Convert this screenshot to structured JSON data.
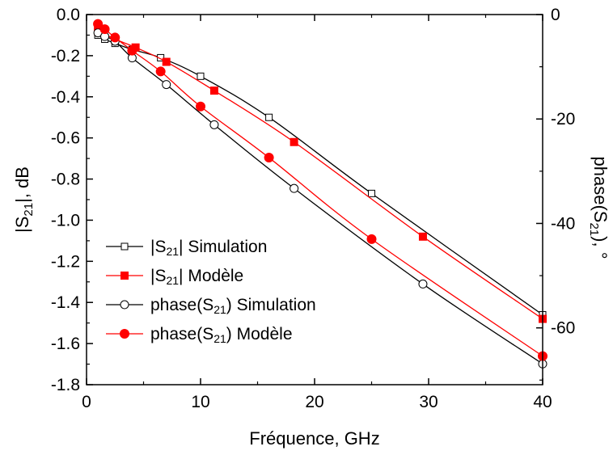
{
  "chart_data": {
    "type": "line",
    "xlabel": "Fréquence, GHz",
    "ylabel_left": {
      "base": "|S",
      "sub": "21",
      "tail": "|, dB"
    },
    "ylabel_right": {
      "base": "phase(S",
      "sub": "21",
      "tail": "), °"
    },
    "xlim": [
      0,
      40
    ],
    "ylim_left": [
      -1.8,
      0.0
    ],
    "ylim_right": [
      -70.88,
      0
    ],
    "x_ticks": [
      0,
      10,
      20,
      30,
      40
    ],
    "y_left_ticks": [
      0.0,
      -0.2,
      -0.4,
      -0.6,
      -0.8,
      -1.0,
      -1.2,
      -1.4,
      -1.6,
      -1.8
    ],
    "y_left_tick_labels": [
      "0.0",
      "-0.2",
      "-0.4",
      "-0.6",
      "-0.8",
      "-1.0",
      "-1.2",
      "-1.4",
      "-1.6",
      "-1.8"
    ],
    "y_right_ticks": [
      0,
      -20,
      -40,
      -60
    ],
    "y_right_tick_labels": [
      "0",
      "-20",
      "-40",
      "-60"
    ],
    "grid": false,
    "legend_position": "lower-left",
    "series": [
      {
        "name": {
          "base": "|S",
          "sub": "21",
          "tail": "| Simulation"
        },
        "axis": "left",
        "color": "#000000",
        "marker": "square-open",
        "x": [
          1,
          1.6,
          2.5,
          4,
          6.5,
          10,
          16,
          25,
          40
        ],
        "y": [
          -0.1,
          -0.12,
          -0.14,
          -0.17,
          -0.21,
          -0.3,
          -0.5,
          -0.87,
          -1.46
        ]
      },
      {
        "name": {
          "base": "|S",
          "sub": "21",
          "tail": "| Modèle"
        },
        "axis": "left",
        "color": "#ff0000",
        "marker": "square-filled",
        "x": [
          1,
          2.5,
          4.3,
          7,
          11.2,
          18.2,
          29.5,
          40
        ],
        "y": [
          -0.08,
          -0.12,
          -0.16,
          -0.23,
          -0.37,
          -0.62,
          -1.08,
          -1.48
        ]
      },
      {
        "name": {
          "base": "phase(S",
          "sub": "21",
          "tail": ") Simulation"
        },
        "axis": "right",
        "color": "#000000",
        "marker": "circle-open",
        "x": [
          1,
          1.6,
          2.5,
          4,
          7,
          11.2,
          18.2,
          29.5,
          40
        ],
        "y": [
          -3.5,
          -4.2,
          -5.1,
          -8.3,
          -13.4,
          -21.1,
          -33.3,
          -51.6,
          -66.9
        ]
      },
      {
        "name": {
          "base": "phase(S",
          "sub": "21",
          "tail": ") Modèle"
        },
        "axis": "right",
        "color": "#ff0000",
        "marker": "circle-filled",
        "x": [
          1,
          1.6,
          2.5,
          4,
          6.5,
          10,
          16,
          25,
          40
        ],
        "y": [
          -1.8,
          -2.8,
          -4.4,
          -6.9,
          -10.9,
          -17.6,
          -27.4,
          -43.0,
          -65.4
        ]
      }
    ]
  }
}
